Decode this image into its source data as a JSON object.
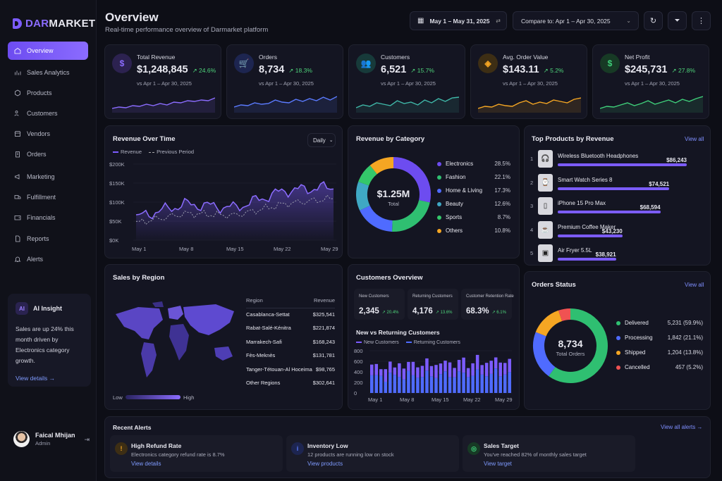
{
  "brand": {
    "part1": "DAR",
    "part2": "MARKET"
  },
  "nav": [
    {
      "label": "Overview",
      "icon": "home-icon"
    },
    {
      "label": "Sales Analytics",
      "icon": "chart-icon"
    },
    {
      "label": "Products",
      "icon": "box-icon"
    },
    {
      "label": "Customers",
      "icon": "users-icon"
    },
    {
      "label": "Vendors",
      "icon": "store-icon"
    },
    {
      "label": "Orders",
      "icon": "clipboard-icon"
    },
    {
      "label": "Marketing",
      "icon": "megaphone-icon"
    },
    {
      "label": "Fulfillment",
      "icon": "truck-icon"
    },
    {
      "label": "Financials",
      "icon": "wallet-icon"
    },
    {
      "label": "Reports",
      "icon": "file-icon"
    },
    {
      "label": "Alerts",
      "icon": "bell-icon"
    }
  ],
  "ai_insight": {
    "title": "AI Insight",
    "text": "Sales are up 24% this month driven by Electronics category growth.",
    "link": "View details →"
  },
  "user": {
    "name": "Faical Mhijan",
    "role": "Admin"
  },
  "header": {
    "title": "Overview",
    "subtitle": "Real-time performance overview of Darmarket platform",
    "date_range": "May 1 – May 31, 2025",
    "compare": "Compare to: Apr 1 – Apr 30, 2025"
  },
  "colors": {
    "accent": "#7c5cff",
    "blue": "#4f6bff",
    "green": "#2fbf71",
    "orange": "#f5a623",
    "red": "#f05252",
    "teal": "#3fb8c4"
  },
  "kpis": [
    {
      "label": "Total Revenue",
      "value": "$1,248,845",
      "delta": "↗ 24.6%",
      "compare": "vs Apr 1 – Apr 30, 2025",
      "icon": "dollar-tag-icon",
      "color": "#8b6cff",
      "bg": "#2c2250"
    },
    {
      "label": "Orders",
      "value": "8,734",
      "delta": "↗ 18.3%",
      "compare": "vs Apr 1 – Apr 30, 2025",
      "icon": "cart-icon",
      "color": "#5b7bff",
      "bg": "#1d2550"
    },
    {
      "label": "Customers",
      "value": "6,521",
      "delta": "↗ 15.7%",
      "compare": "vs Apr 1 – Apr 30, 2025",
      "icon": "users-icon",
      "color": "#3fb8a8",
      "bg": "#173a3a"
    },
    {
      "label": "Avg. Order Value",
      "value": "$143.11",
      "delta": "↗ 5.2%",
      "compare": "vs Apr 1 – Apr 30, 2025",
      "icon": "tag-icon",
      "color": "#f5a623",
      "bg": "#3d2e14"
    },
    {
      "label": "Net Profit",
      "value": "$245,731",
      "delta": "↗ 27.8%",
      "compare": "vs Apr 1 – Apr 30, 2025",
      "icon": "dollar-icon",
      "color": "#3fcf7a",
      "bg": "#173a25"
    }
  ],
  "revenue_over_time": {
    "title": "Revenue Over Time",
    "select": "Daily",
    "legend": [
      "Revenue",
      "Previous Period"
    ],
    "yticks": [
      "$200K",
      "$150K",
      "$100K",
      "$50K",
      "$0K"
    ],
    "xticks": [
      "May 1",
      "May 8",
      "May 15",
      "May 22",
      "May 29"
    ]
  },
  "revenue_by_category": {
    "title": "Revenue by Category",
    "center_value": "$1.25M",
    "center_label": "Total",
    "items": [
      {
        "name": "Electronics",
        "pct": "28.5%",
        "value": 28.5,
        "color": "#6d4cf0"
      },
      {
        "name": "Fashion",
        "pct": "22.1%",
        "value": 22.1,
        "color": "#2fbf71"
      },
      {
        "name": "Home & Living",
        "pct": "17.3%",
        "value": 17.3,
        "color": "#4f6bff"
      },
      {
        "name": "Beauty",
        "pct": "12.6%",
        "value": 12.6,
        "color": "#3fa8c4"
      },
      {
        "name": "Sports",
        "pct": "8.7%",
        "value": 8.7,
        "color": "#34c76a"
      },
      {
        "name": "Others",
        "pct": "10.8%",
        "value": 10.8,
        "color": "#f5a623"
      }
    ]
  },
  "top_products": {
    "title": "Top Products by Revenue",
    "view_all": "View all",
    "items": [
      {
        "rank": "1",
        "name": "Wireless Bluetooth Headphones",
        "value": "$86,243",
        "amount": 86243
      },
      {
        "rank": "2",
        "name": "Smart Watch Series 8",
        "value": "$74,521",
        "amount": 74521
      },
      {
        "rank": "3",
        "name": "iPhone 15 Pro Max",
        "value": "$68,594",
        "amount": 68594
      },
      {
        "rank": "4",
        "name": "Premium Coffee Maker",
        "value": "$43,230",
        "amount": 43230
      },
      {
        "rank": "5",
        "name": "Air Fryer 5.5L",
        "value": "$38,921",
        "amount": 38921
      }
    ]
  },
  "sales_by_region": {
    "title": "Sales by Region",
    "col_region": "Region",
    "col_revenue": "Revenue",
    "legend_low": "Low",
    "legend_high": "High",
    "rows": [
      {
        "region": "Casablanca-Settat",
        "revenue": "$325,541"
      },
      {
        "region": "Rabat-Salé-Kénitra",
        "revenue": "$221,874"
      },
      {
        "region": "Marrakech-Safi",
        "revenue": "$168,243"
      },
      {
        "region": "Fès-Meknès",
        "revenue": "$131,781"
      },
      {
        "region": "Tanger-Tétouan-Al Hoceima",
        "revenue": "$98,765"
      },
      {
        "region": "Other Regions",
        "revenue": "$302,641"
      }
    ]
  },
  "customers_overview": {
    "title": "Customers Overview",
    "stats": [
      {
        "label": "New Customers",
        "value": "2,345",
        "delta": "↗ 20.4%"
      },
      {
        "label": "Returning Customers",
        "value": "4,176",
        "delta": "↗ 13.6%"
      },
      {
        "label": "Customer Retention Rate",
        "value": "68.3%",
        "delta": "↗ 6.1%"
      }
    ],
    "chart_title": "New vs Returning Customers",
    "legend": [
      "New Customers",
      "Returning Customers"
    ],
    "yticks": [
      "800",
      "600",
      "400",
      "200",
      "0"
    ],
    "xticks": [
      "May 1",
      "May 8",
      "May 15",
      "May 22",
      "May 29"
    ]
  },
  "orders_status": {
    "title": "Orders Status",
    "view_all": "View all",
    "center_value": "8,734",
    "center_label": "Total Orders",
    "items": [
      {
        "name": "Delivered",
        "value": "5,231 (59.9%)",
        "pct": 59.9,
        "color": "#2fbf71"
      },
      {
        "name": "Processing",
        "value": "1,842 (21.1%)",
        "pct": 21.1,
        "color": "#4f6bff"
      },
      {
        "name": "Shipped",
        "value": "1,204 (13.8%)",
        "pct": 13.8,
        "color": "#f5a623"
      },
      {
        "name": "Cancelled",
        "value": "457 (5.2%)",
        "pct": 5.2,
        "color": "#f05252"
      }
    ]
  },
  "alerts": {
    "title": "Recent Alerts",
    "view_all": "View all alerts →",
    "items": [
      {
        "title": "High Refund Rate",
        "desc": "Electronics category refund rate is 8.7%",
        "link": "View details",
        "icon": "warning-icon",
        "color": "#f5a623",
        "bg": "#3d2e14"
      },
      {
        "title": "Inventory Low",
        "desc": "12 products are running low on stock",
        "link": "View products",
        "icon": "info-icon",
        "color": "#5b7bff",
        "bg": "#1d2550"
      },
      {
        "title": "Sales Target",
        "desc": "You've reached 82% of monthly sales target",
        "link": "View target",
        "icon": "target-icon",
        "color": "#3fcf7a",
        "bg": "#173a25"
      }
    ]
  },
  "chart_data": [
    {
      "type": "line",
      "title": "Revenue Over Time",
      "x": [
        "May 1",
        "May 8",
        "May 15",
        "May 22",
        "May 29"
      ],
      "ylim": [
        0,
        200000
      ],
      "series": [
        {
          "name": "Revenue",
          "values": [
            60000,
            95000,
            85000,
            130000,
            140000
          ]
        },
        {
          "name": "Previous Period",
          "values": [
            45000,
            70000,
            65000,
            95000,
            110000
          ]
        }
      ]
    },
    {
      "type": "pie",
      "title": "Revenue by Category",
      "categories": [
        "Electronics",
        "Fashion",
        "Home & Living",
        "Beauty",
        "Sports",
        "Others"
      ],
      "values": [
        28.5,
        22.1,
        17.3,
        12.6,
        8.7,
        10.8
      ]
    },
    {
      "type": "bar",
      "title": "New vs Returning Customers",
      "x": [
        "May 1",
        "May 8",
        "May 15",
        "May 22",
        "May 29"
      ],
      "ylim": [
        0,
        800
      ],
      "series": [
        {
          "name": "New Customers",
          "values": [
            180,
            210,
            220,
            230,
            240
          ]
        },
        {
          "name": "Returning Customers",
          "values": [
            300,
            330,
            340,
            360,
            380
          ]
        }
      ]
    },
    {
      "type": "pie",
      "title": "Orders Status",
      "categories": [
        "Delivered",
        "Processing",
        "Shipped",
        "Cancelled"
      ],
      "values": [
        59.9,
        21.1,
        13.8,
        5.2
      ]
    }
  ]
}
